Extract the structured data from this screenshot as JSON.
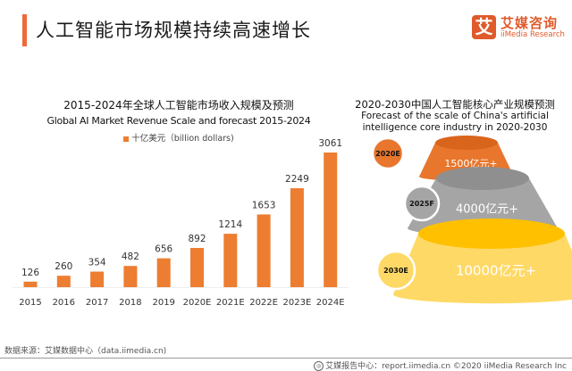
{
  "header": {
    "title": "人工智能市场规模持续高速增长",
    "accent_color": "#ee6a3a"
  },
  "logo": {
    "glyph": "艾",
    "name_cn": "艾媒咨询",
    "name_en": "iiMedia Research",
    "brand_color": "#e05a2b"
  },
  "chart_data": [
    {
      "type": "bar",
      "title": "2015-2024年全球人工智能市场收入规模及预测",
      "subtitle": "Global AI Market Revenue Scale and forecast 2015-2024",
      "legend": "十亿美元（billion dollars)",
      "legend_position": "top-center",
      "categories": [
        "2015",
        "2016",
        "2017",
        "2018",
        "2019",
        "2020E",
        "2021E",
        "2022E",
        "2023E",
        "2024E"
      ],
      "values": [
        126,
        260,
        354,
        482,
        656,
        892,
        1214,
        1653,
        2249,
        3061
      ],
      "xlabel": "",
      "ylabel": "",
      "ylim": [
        0,
        3061
      ],
      "grid": false,
      "bar_color": "#ed7d31"
    },
    {
      "type": "pyramid",
      "title": "2020-2030中国人工智能核心产业规模预测",
      "subtitle": "Forecast of the scale of China's artificial intelligence core industry in 2020-2030",
      "tiers": [
        {
          "year": "2020E",
          "value_label": "1500亿元+",
          "value": 1500,
          "unit": "亿元",
          "color": "#e8762d",
          "top_color": "#d9651c"
        },
        {
          "year": "2025F",
          "value_label": "4000亿元+",
          "value": 4000,
          "unit": "亿元",
          "color": "#a5a5a5",
          "top_color": "#8f8f8f"
        },
        {
          "year": "2030E",
          "value_label": "10000亿元+",
          "value": 10000,
          "unit": "亿元",
          "color": "#ffd966",
          "top_color": "#ffc000"
        }
      ]
    }
  ],
  "footer": {
    "source": "数据来源：艾媒数据中心（data.iimedia.cn)",
    "credit": "艾媒报告中心：report.iimedia.cn  ©2020  iiMedia Research  Inc"
  }
}
